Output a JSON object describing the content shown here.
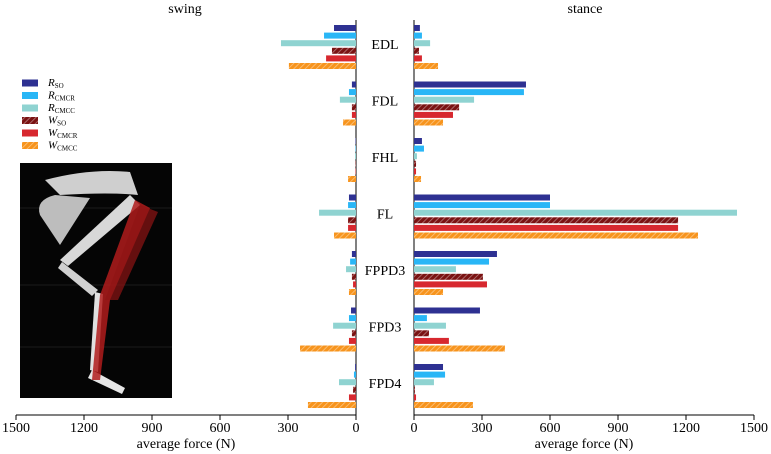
{
  "chart_data": [
    {
      "type": "bar",
      "title": "swing",
      "xlabel": "average force (N)",
      "categories": [
        "EDL",
        "FDL",
        "FHL",
        "FL",
        "FPPD3",
        "FPD3",
        "FPD4"
      ],
      "xlim": [
        1500,
        0
      ],
      "xticks": [
        1500,
        1200,
        900,
        600,
        300,
        0
      ],
      "series": [
        {
          "symbol": "R",
          "subscript": "SO",
          "color": "#2e3192",
          "hatch": false,
          "values": [
            97,
            18,
            2,
            31,
            18,
            22,
            4
          ]
        },
        {
          "symbol": "R",
          "subscript": "CMCR",
          "color": "#29b6f6",
          "hatch": false,
          "values": [
            141,
            31,
            2,
            35,
            26,
            31,
            9
          ]
        },
        {
          "symbol": "R",
          "subscript": "CMCC",
          "color": "#8fd3d1",
          "hatch": false,
          "values": [
            331,
            71,
            4,
            163,
            44,
            101,
            75
          ]
        },
        {
          "symbol": "W",
          "subscript": "SO",
          "color": "#7a1212",
          "hatch": true,
          "values": [
            106,
            18,
            2,
            35,
            18,
            18,
            13
          ]
        },
        {
          "symbol": "W",
          "subscript": "CMCR",
          "color": "#d7282f",
          "hatch": false,
          "values": [
            132,
            18,
            2,
            35,
            13,
            31,
            31
          ]
        },
        {
          "symbol": "W",
          "subscript": "CMCC",
          "color": "#f7941d",
          "hatch": true,
          "values": [
            296,
            57,
            35,
            97,
            31,
            247,
            212
          ]
        }
      ]
    },
    {
      "type": "bar",
      "title": "stance",
      "xlabel": "average force (N)",
      "xlim": [
        0,
        1500
      ],
      "xticks": [
        0,
        300,
        600,
        900,
        1200,
        1500
      ],
      "series": [
        {
          "color": "#2e3192",
          "hatch": false,
          "values": [
            26,
            494,
            35,
            600,
            366,
            291,
            128
          ]
        },
        {
          "color": "#29b6f6",
          "hatch": false,
          "values": [
            35,
            485,
            44,
            600,
            331,
            57,
            137
          ]
        },
        {
          "color": "#8fd3d1",
          "hatch": false,
          "values": [
            71,
            265,
            13,
            1425,
            185,
            141,
            88
          ]
        },
        {
          "color": "#7a1212",
          "hatch": true,
          "values": [
            22,
            199,
            9,
            1165,
            304,
            66,
            4
          ]
        },
        {
          "color": "#d7282f",
          "hatch": false,
          "values": [
            35,
            172,
            9,
            1165,
            322,
            154,
            9
          ]
        },
        {
          "color": "#f7941d",
          "hatch": true,
          "values": [
            106,
            128,
            31,
            1253,
            128,
            401,
            260
          ]
        }
      ]
    }
  ]
}
